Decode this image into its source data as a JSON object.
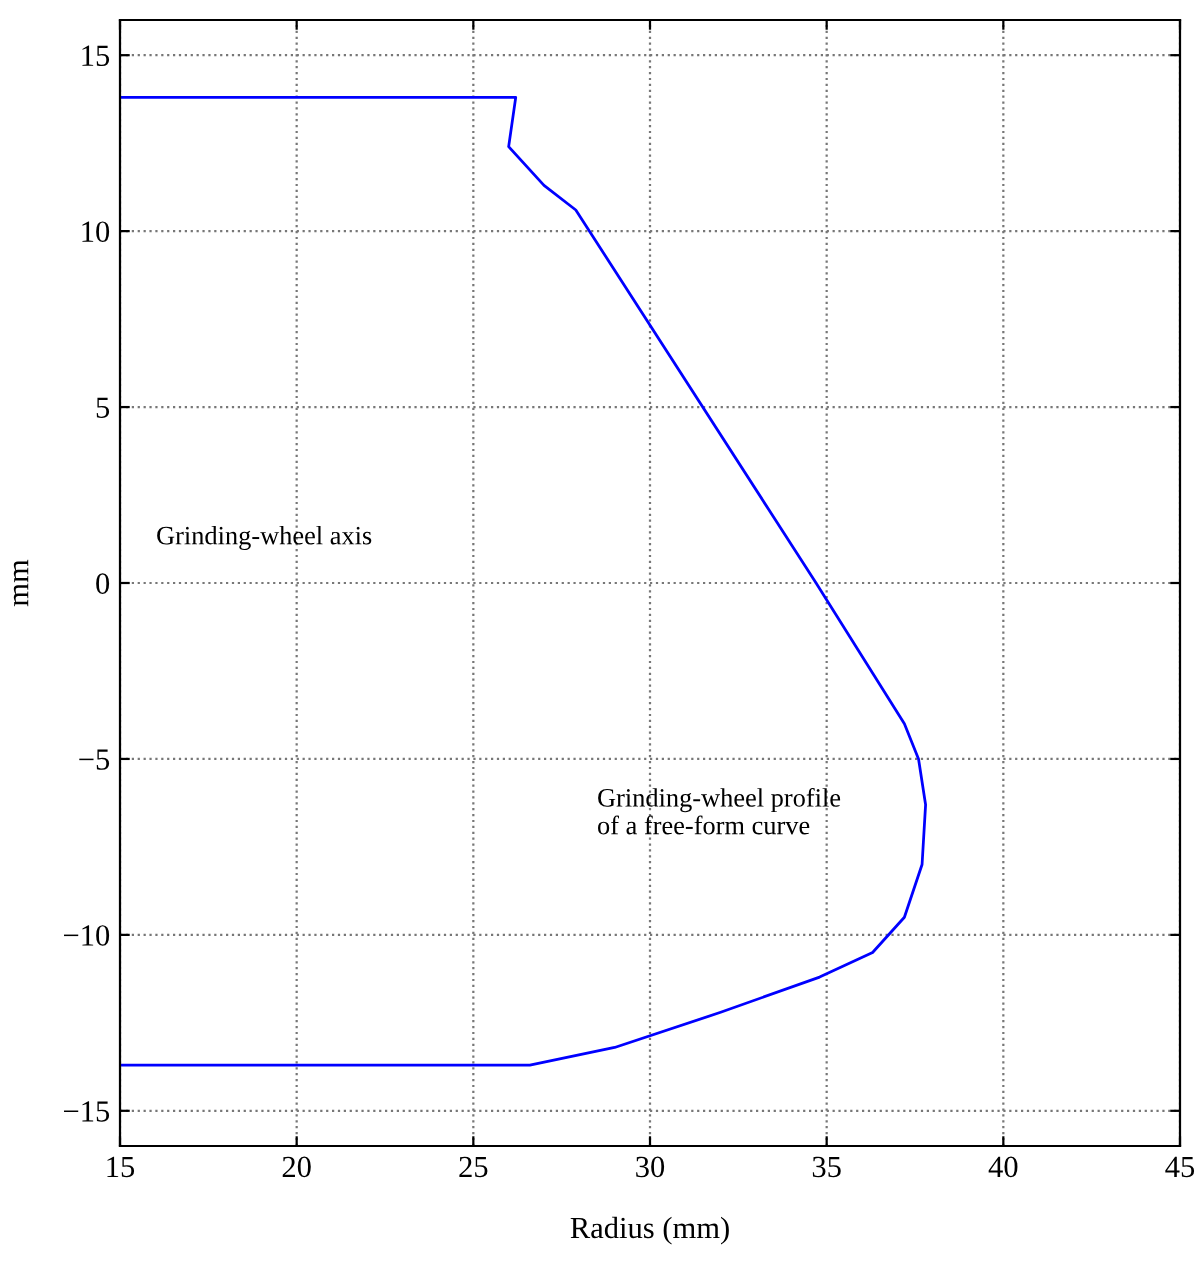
{
  "chart_data": {
    "type": "line",
    "xlabel": "Radius (mm)",
    "ylabel": "mm",
    "series": [
      {
        "color": "#0000ff",
        "x": [
          15,
          26.2,
          26.0,
          27.0,
          27.9,
          34.7,
          37.2,
          37.6,
          37.8,
          37.7,
          37.2,
          36.3,
          34.8,
          32.0,
          29.0,
          26.6,
          15
        ],
        "values": [
          13.8,
          13.8,
          12.4,
          11.3,
          10.6,
          0,
          -4.0,
          -5.0,
          -6.3,
          -8.0,
          -9.5,
          -10.5,
          -11.2,
          -12.2,
          -13.2,
          -13.7,
          -13.7
        ]
      }
    ],
    "xlim": [
      15,
      45
    ],
    "ylim": [
      -16,
      16
    ],
    "xticks": [
      15,
      20,
      25,
      30,
      35,
      40,
      45
    ],
    "yticks": [
      {
        "value": -15,
        "label": "−15"
      },
      {
        "value": -10,
        "label": "−10"
      },
      {
        "value": -5,
        "label": "−5"
      },
      0,
      5,
      10,
      15
    ],
    "grid": true,
    "line_style": "solid",
    "marker": "none",
    "annotations": [
      "Grinding-wheel axis",
      "Grinding-wheel profile\nof a free-form curve"
    ]
  }
}
